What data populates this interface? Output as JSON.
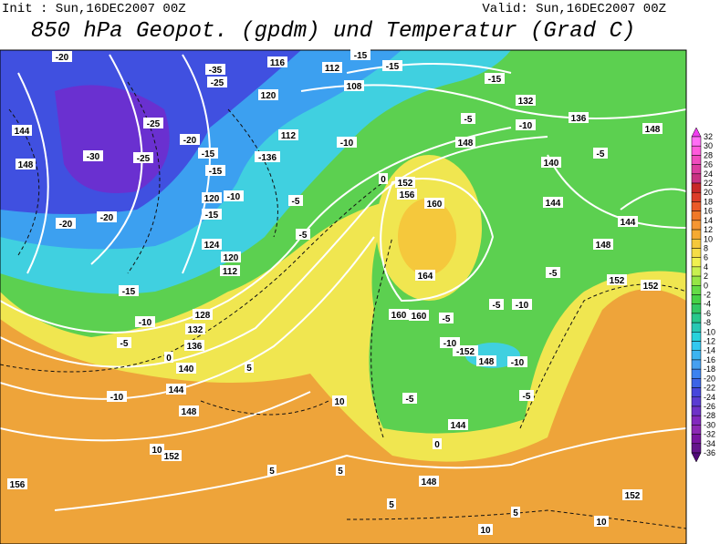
{
  "header": {
    "init": "Init : Sun,16DEC2007 00Z",
    "valid": "Valid: Sun,16DEC2007 00Z",
    "title": "850 hPa Geopot. (gpdm) und Temperatur (Grad C)"
  },
  "colorbar": {
    "levels": [
      32,
      30,
      28,
      26,
      24,
      22,
      20,
      18,
      16,
      14,
      12,
      10,
      8,
      6,
      4,
      2,
      0,
      -2,
      -4,
      -6,
      -8,
      -10,
      -12,
      -14,
      -16,
      -18,
      -20,
      -22,
      -24,
      -26,
      -28,
      -30,
      -32,
      -34,
      -36
    ],
    "colors": [
      "#f03cf0",
      "#ff6ef5",
      "#ff5adc",
      "#f04bbe",
      "#dc3ca0",
      "#c83282",
      "#c82828",
      "#dc3c28",
      "#eb5a28",
      "#f07828",
      "#f59632",
      "#f5aa32",
      "#f5c83c",
      "#f5dc46",
      "#f0f050",
      "#c8f050",
      "#96e646",
      "#64dc46",
      "#46d246",
      "#32c864",
      "#28c88c",
      "#28c8b4",
      "#28d2dc",
      "#32c8f0",
      "#3cb4f0",
      "#46a0f0",
      "#3c82f0",
      "#3c64e6",
      "#4646dc",
      "#5a3cd2",
      "#6e32c8",
      "#8228be",
      "#8c28b4",
      "#7814a0",
      "#64148c",
      "#500a78"
    ]
  },
  "contour_labels": [
    "-20",
    "-35",
    "-25",
    "116",
    "112",
    "-15",
    "-15",
    "108",
    "-15",
    "132",
    "-10",
    "136",
    "148",
    "144",
    "-25",
    "-20",
    "-15",
    "-25",
    "-30",
    "148",
    "120",
    "-136",
    "112",
    "-10",
    "148",
    "-5",
    "140",
    "-5",
    "-15",
    "-20",
    "-20",
    "120",
    "-15",
    "-10",
    "-5",
    "124",
    "120",
    "112",
    "152",
    "156",
    "160",
    "144",
    "144",
    "-15",
    "-10",
    "128",
    "132",
    "136",
    "-5",
    "0",
    "140",
    "144",
    "148",
    "-10",
    "10",
    "152",
    "156",
    "5",
    "10",
    "5",
    "5",
    "148",
    "0",
    "144",
    "-5",
    "160",
    "160",
    "-5",
    "-5",
    "-10",
    "-152",
    "148",
    "-10",
    "-5",
    "-10",
    "-5",
    "152",
    "152",
    "148",
    "152",
    "10",
    "10",
    "5",
    "5",
    "164",
    "0",
    "-5"
  ]
}
